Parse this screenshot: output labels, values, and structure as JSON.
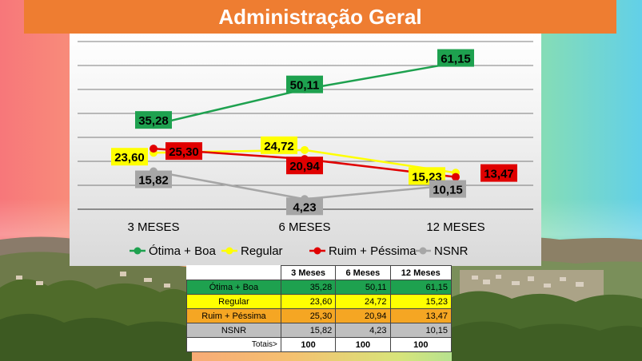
{
  "title": "Administração Geral",
  "chart_data": {
    "type": "line",
    "categories": [
      "3 MESES",
      "6 MESES",
      "12 MESES"
    ],
    "series": [
      {
        "name": "Ótima + Boa",
        "values": [
          35.28,
          50.11,
          61.15
        ],
        "labels": [
          "35,28",
          "50,11",
          "61,15"
        ],
        "color": "#1ea14f",
        "label_color": "#1ea14f"
      },
      {
        "name": "Regular",
        "values": [
          23.6,
          24.72,
          15.23
        ],
        "labels": [
          "23,60",
          "24,72",
          "15,23"
        ],
        "color": "#ffff00",
        "label_color": "#ffff00"
      },
      {
        "name": "Ruim + Péssima",
        "values": [
          25.3,
          20.94,
          13.47
        ],
        "labels": [
          "25,30",
          "20,94",
          "13,47"
        ],
        "color": "#e00000",
        "label_color": "#e00000"
      },
      {
        "name": "NSNR",
        "values": [
          15.82,
          4.23,
          10.15
        ],
        "labels": [
          "15,82",
          "4,23",
          "10,15"
        ],
        "color": "#a6a6a6",
        "label_color": "#a6a6a6"
      }
    ],
    "ylim": [
      0,
      70
    ],
    "grid": true,
    "legend": "bottom"
  },
  "table": {
    "headers": [
      "3 Meses",
      "6 Meses",
      "12 Meses"
    ],
    "rows": [
      {
        "label": "Ótima + Boa",
        "values": [
          "35,28",
          "50,11",
          "61,15"
        ]
      },
      {
        "label": "Regular",
        "values": [
          "23,60",
          "24,72",
          "15,23"
        ]
      },
      {
        "label": "Ruim + Péssima",
        "values": [
          "25,30",
          "20,94",
          "13,47"
        ]
      },
      {
        "label": "NSNR",
        "values": [
          "15,82",
          "4,23",
          "10,15"
        ]
      }
    ],
    "total_label": "Totais>",
    "totals": [
      "100",
      "100",
      "100"
    ]
  }
}
